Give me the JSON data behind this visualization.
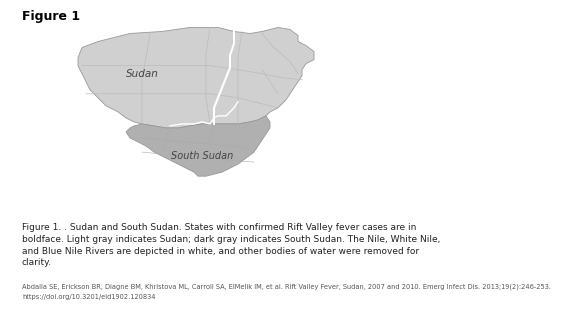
{
  "title": "Figure 1",
  "title_fontsize": 9,
  "title_fontweight": "bold",
  "caption_text": "Figure 1. . Sudan and South Sudan. States with confirmed Rift Valley fever cases are in\nboldface. Light gray indicates Sudan; dark gray indicates South Sudan. The Nile, White Nile,\nand Blue Nile Rivers are depicted in white, and other bodies of water were removed for\nclarity.",
  "citation_line1": "Abdalla SE, Erickson BR, Diagne BM, Khristova ML, Carroll SA, ElMelik IM, et al. Rift Valley Fever, Sudan, 2007 and 2010. Emerg Infect Dis. 2013;19(2):246-253.",
  "citation_line2": "https://doi.org/10.3201/eid1902.120834",
  "sudan_color": "#d0d0d0",
  "south_sudan_color": "#b0b0b0",
  "border_color": "#999999",
  "inner_border_color": "#bbbbbb",
  "background_color": "#ffffff",
  "sudan_label": "Sudan",
  "south_sudan_label": "South Sudan",
  "caption_fontsize": 6.5,
  "citation_fontsize": 4.8,
  "nile_color": "#ffffff"
}
